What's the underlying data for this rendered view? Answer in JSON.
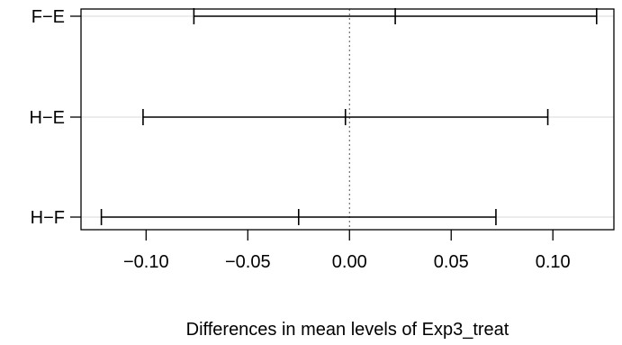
{
  "chart_data": {
    "type": "errorbar",
    "title": "",
    "xlabel": "Differences in mean levels of Exp3_treat",
    "ylabel": "",
    "xlim": [
      -0.132,
      0.13
    ],
    "x_ticks": [
      -0.1,
      -0.05,
      0.0,
      0.05,
      0.1
    ],
    "x_tick_labels": [
      "−0.10",
      "−0.05",
      "0.00",
      "0.05",
      "0.10"
    ],
    "reference_line": 0,
    "grid": "horizontal",
    "comparisons": [
      {
        "label": "F−E",
        "lower": -0.0765,
        "estimate": 0.0225,
        "upper": 0.1215
      },
      {
        "label": "H−E",
        "lower": -0.1015,
        "estimate": -0.002,
        "upper": 0.0975
      },
      {
        "label": "H−F",
        "lower": -0.122,
        "estimate": -0.025,
        "upper": 0.072
      }
    ],
    "colors": {
      "line": "#000000",
      "grid": "#d9d9d9",
      "reference": "#555555"
    }
  }
}
